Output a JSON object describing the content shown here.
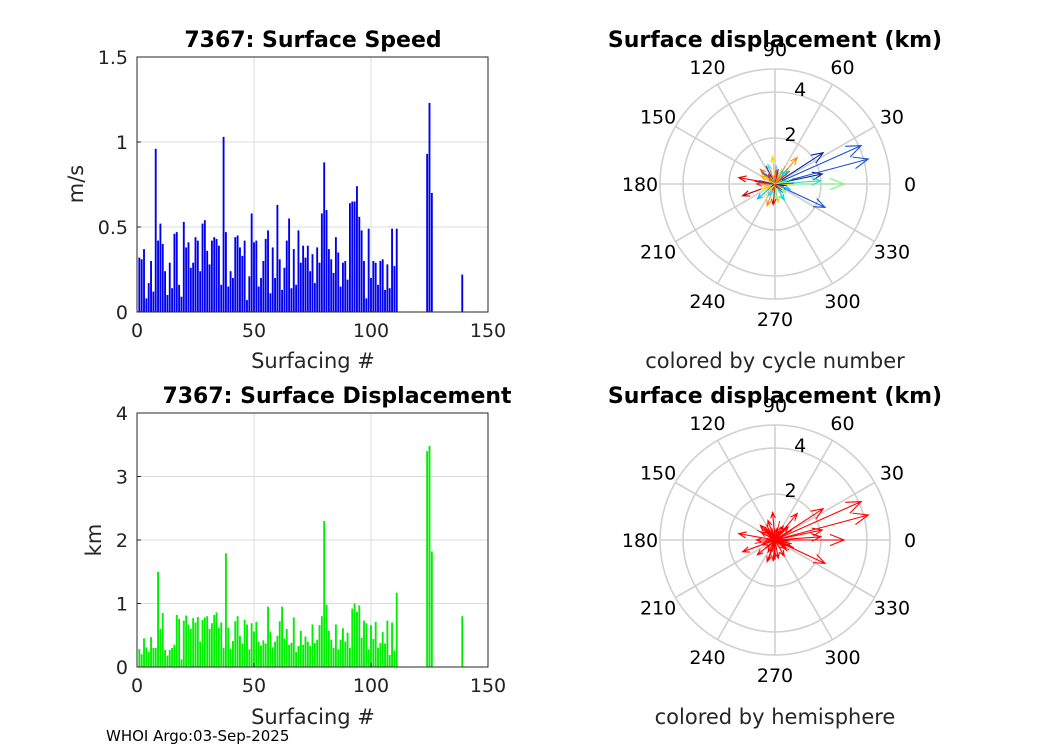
{
  "chart_data": [
    {
      "type": "bar",
      "title": "7367: Surface Speed",
      "xlabel": "Surfacing #",
      "ylabel": "m/s",
      "xlim": [
        0,
        150
      ],
      "ylim": [
        0,
        1.5
      ],
      "xticks": [
        "0",
        "50",
        "100",
        "150"
      ],
      "yticks": [
        "0",
        "0.5",
        "1",
        "1.5"
      ],
      "color": "#0000ee",
      "x": [
        1,
        2,
        3,
        4,
        5,
        6,
        7,
        8,
        9,
        10,
        11,
        12,
        13,
        14,
        15,
        16,
        17,
        18,
        19,
        20,
        21,
        22,
        23,
        24,
        25,
        26,
        27,
        28,
        29,
        30,
        31,
        32,
        33,
        34,
        35,
        36,
        37,
        38,
        39,
        40,
        41,
        42,
        43,
        44,
        45,
        46,
        47,
        48,
        49,
        50,
        51,
        52,
        53,
        54,
        55,
        56,
        57,
        58,
        59,
        60,
        61,
        62,
        63,
        64,
        65,
        66,
        67,
        68,
        69,
        70,
        71,
        72,
        73,
        74,
        75,
        76,
        77,
        78,
        79,
        80,
        81,
        82,
        83,
        84,
        85,
        86,
        87,
        88,
        89,
        90,
        91,
        92,
        93,
        94,
        95,
        96,
        97,
        98,
        99,
        100,
        101,
        102,
        103,
        104,
        105,
        106,
        107,
        108,
        109,
        110,
        111,
        124,
        125,
        126,
        139
      ],
      "values": [
        0.32,
        0.31,
        0.37,
        0.08,
        0.17,
        0.3,
        0.12,
        0.96,
        0.42,
        0.52,
        0.4,
        0.24,
        0.1,
        0.29,
        0.14,
        0.46,
        0.47,
        0.16,
        0.09,
        0.53,
        0.38,
        0.41,
        0.26,
        0.29,
        0.44,
        0.42,
        0.24,
        0.52,
        0.54,
        0.36,
        0.28,
        0.42,
        0.44,
        0.43,
        0.39,
        0.16,
        1.03,
        0.47,
        0.15,
        0.24,
        0.2,
        0.44,
        0.45,
        0.38,
        0.33,
        0.42,
        0.07,
        0.21,
        0.58,
        0.41,
        0.42,
        0.15,
        0.2,
        0.3,
        0.43,
        0.48,
        0.11,
        0.38,
        0.2,
        0.63,
        0.31,
        0.13,
        0.26,
        0.42,
        0.55,
        0.14,
        0.37,
        0.16,
        0.48,
        0.29,
        0.39,
        0.32,
        0.39,
        0.24,
        0.34,
        0.17,
        0.38,
        0.29,
        0.58,
        0.88,
        0.6,
        0.37,
        0.31,
        0.23,
        0.44,
        0.35,
        0.15,
        0.29,
        0.3,
        0.19,
        0.64,
        0.65,
        0.65,
        0.74,
        0.56,
        0.48,
        0.3,
        0.08,
        0.49,
        0.2,
        0.3,
        0.29,
        0.16,
        0.3,
        0.31,
        0.13,
        0.28,
        0.14,
        0.49,
        0.27,
        0.49,
        0.93,
        1.23,
        0.7,
        0.22
      ]
    },
    {
      "type": "bar",
      "title": "7367: Surface Displacement",
      "xlabel": "Surfacing #",
      "ylabel": "km",
      "xlim": [
        0,
        150
      ],
      "ylim": [
        0,
        4
      ],
      "xticks": [
        "0",
        "50",
        "100",
        "150"
      ],
      "yticks": [
        "0",
        "1",
        "2",
        "3",
        "4"
      ],
      "color": "#00ee00",
      "x": [
        1,
        2,
        3,
        4,
        5,
        6,
        7,
        8,
        9,
        10,
        11,
        12,
        13,
        14,
        15,
        16,
        17,
        18,
        19,
        20,
        21,
        22,
        23,
        24,
        25,
        26,
        27,
        28,
        29,
        30,
        31,
        32,
        33,
        34,
        35,
        36,
        37,
        38,
        39,
        40,
        41,
        42,
        43,
        44,
        45,
        46,
        47,
        48,
        49,
        50,
        51,
        52,
        53,
        54,
        55,
        56,
        57,
        58,
        59,
        60,
        61,
        62,
        63,
        64,
        65,
        66,
        67,
        68,
        69,
        70,
        71,
        72,
        73,
        74,
        75,
        76,
        77,
        78,
        79,
        80,
        81,
        82,
        83,
        84,
        85,
        86,
        87,
        88,
        89,
        90,
        91,
        92,
        93,
        94,
        95,
        96,
        97,
        98,
        99,
        100,
        101,
        102,
        103,
        104,
        105,
        106,
        107,
        108,
        109,
        110,
        111,
        124,
        125,
        126,
        139
      ],
      "values": [
        0.28,
        0.2,
        0.45,
        0.31,
        0.24,
        0.47,
        0.3,
        0.3,
        1.5,
        0.6,
        0.85,
        0.27,
        0.18,
        0.27,
        0.3,
        0.35,
        0.82,
        0.76,
        0.12,
        0.73,
        0.81,
        0.67,
        0.6,
        0.77,
        0.7,
        0.79,
        0.4,
        0.74,
        0.78,
        0.8,
        0.6,
        0.69,
        0.82,
        0.86,
        0.62,
        0.7,
        0.3,
        1.79,
        0.62,
        0.29,
        0.41,
        0.72,
        0.8,
        0.49,
        0.37,
        0.74,
        0.67,
        0.28,
        0.69,
        0.56,
        0.71,
        0.4,
        0.34,
        0.42,
        0.37,
        0.95,
        0.55,
        0.31,
        0.4,
        0.49,
        0.72,
        0.95,
        0.45,
        0.6,
        0.35,
        0.38,
        0.78,
        0.24,
        0.33,
        0.57,
        0.35,
        0.48,
        0.4,
        0.33,
        0.67,
        0.38,
        0.43,
        0.66,
        0.8,
        2.3,
        0.98,
        0.57,
        0.43,
        0.3,
        0.67,
        0.28,
        0.43,
        0.61,
        0.4,
        0.54,
        0.3,
        0.92,
        1.0,
        0.87,
        0.97,
        0.46,
        0.73,
        0.69,
        0.28,
        0.66,
        0.44,
        0.71,
        0.3,
        0.38,
        0.55,
        0.37,
        0.73,
        0.19,
        0.7,
        0.26,
        1.17,
        3.4,
        3.48,
        1.82,
        0.8
      ]
    },
    {
      "type": "polar",
      "title": "Surface displacement (km)",
      "caption": "colored by cycle number",
      "rmax": 5,
      "rticks": [
        "2",
        "4"
      ],
      "angle_ticks": [
        "0",
        "30",
        "60",
        "90",
        "120",
        "150",
        "180",
        "210",
        "240",
        "270",
        "300",
        "330"
      ],
      "arrows": [
        {
          "length_km": 4.1,
          "angle_deg": 24,
          "color": "#1a4fd6"
        },
        {
          "length_km": 4.2,
          "angle_deg": 15,
          "color": "#1a4fd6"
        },
        {
          "length_km": 2.5,
          "angle_deg": 33,
          "color": "#0a2a9a"
        },
        {
          "length_km": 2.1,
          "angle_deg": 12,
          "color": "#0a2a9a"
        },
        {
          "length_km": 2.4,
          "angle_deg": -25,
          "color": "#1a4fd6"
        },
        {
          "length_km": 3.0,
          "angle_deg": 0,
          "color": "#7cf07c"
        },
        {
          "length_km": 2.0,
          "angle_deg": 4,
          "color": "#2ee0c0"
        },
        {
          "length_km": 1.5,
          "angle_deg": 50,
          "color": "#ff8c00"
        },
        {
          "length_km": 1.2,
          "angle_deg": 95,
          "color": "#ffd400"
        },
        {
          "length_km": 1.5,
          "angle_deg": 200,
          "color": "#c00000"
        },
        {
          "length_km": 1.6,
          "angle_deg": 170,
          "color": "#e00000"
        },
        {
          "length_km": 0.9,
          "angle_deg": 135,
          "color": "#ff6a00"
        },
        {
          "length_km": 1.0,
          "angle_deg": 250,
          "color": "#ff8c00"
        },
        {
          "length_km": 0.8,
          "angle_deg": 280,
          "color": "#ffcf00"
        },
        {
          "length_km": 1.0,
          "angle_deg": 220,
          "color": "#00c0e0"
        },
        {
          "length_km": 0.8,
          "angle_deg": 300,
          "color": "#00e0d0"
        },
        {
          "length_km": 0.9,
          "angle_deg": 110,
          "color": "#40e0ff"
        },
        {
          "length_km": 0.7,
          "angle_deg": 60,
          "color": "#3fb0ff"
        },
        {
          "length_km": 0.8,
          "angle_deg": 180,
          "color": "#ff3000"
        },
        {
          "length_km": 0.6,
          "angle_deg": 320,
          "color": "#9cff60"
        },
        {
          "length_km": 0.7,
          "angle_deg": 150,
          "color": "#ffb000"
        },
        {
          "length_km": 0.6,
          "angle_deg": 240,
          "color": "#30d0ff"
        },
        {
          "length_km": 0.9,
          "angle_deg": 265,
          "color": "#e00000"
        },
        {
          "length_km": 0.5,
          "angle_deg": 80,
          "color": "#ff5000"
        },
        {
          "length_km": 0.7,
          "angle_deg": 340,
          "color": "#00c8ff"
        },
        {
          "length_km": 0.6,
          "angle_deg": 200,
          "color": "#ffe000"
        },
        {
          "length_km": 0.8,
          "angle_deg": 45,
          "color": "#00e0e0"
        },
        {
          "length_km": 0.5,
          "angle_deg": 125,
          "color": "#ff2000"
        }
      ]
    },
    {
      "type": "polar",
      "title": "Surface displacement (km)",
      "caption": "colored by hemisphere",
      "rmax": 5,
      "rticks": [
        "2",
        "4"
      ],
      "angle_ticks": [
        "0",
        "30",
        "60",
        "90",
        "120",
        "150",
        "180",
        "210",
        "240",
        "270",
        "300",
        "330"
      ],
      "arrows": [
        {
          "length_km": 4.1,
          "angle_deg": 24,
          "color": "#ff0000"
        },
        {
          "length_km": 4.2,
          "angle_deg": 15,
          "color": "#ff0000"
        },
        {
          "length_km": 2.5,
          "angle_deg": 33,
          "color": "#ff0000"
        },
        {
          "length_km": 2.1,
          "angle_deg": 12,
          "color": "#ff0000"
        },
        {
          "length_km": 2.4,
          "angle_deg": -25,
          "color": "#ff0000"
        },
        {
          "length_km": 3.0,
          "angle_deg": 0,
          "color": "#ff0000"
        },
        {
          "length_km": 2.0,
          "angle_deg": 4,
          "color": "#ff0000"
        },
        {
          "length_km": 1.5,
          "angle_deg": 50,
          "color": "#ff0000"
        },
        {
          "length_km": 1.2,
          "angle_deg": 95,
          "color": "#ff0000"
        },
        {
          "length_km": 1.5,
          "angle_deg": 200,
          "color": "#ff0000"
        },
        {
          "length_km": 1.6,
          "angle_deg": 170,
          "color": "#ff0000"
        },
        {
          "length_km": 0.9,
          "angle_deg": 135,
          "color": "#ff0000"
        },
        {
          "length_km": 1.0,
          "angle_deg": 250,
          "color": "#ff0000"
        },
        {
          "length_km": 0.8,
          "angle_deg": 280,
          "color": "#ff0000"
        },
        {
          "length_km": 1.0,
          "angle_deg": 220,
          "color": "#ff0000"
        },
        {
          "length_km": 0.8,
          "angle_deg": 300,
          "color": "#ff0000"
        },
        {
          "length_km": 0.9,
          "angle_deg": 110,
          "color": "#ff0000"
        },
        {
          "length_km": 0.7,
          "angle_deg": 60,
          "color": "#ff0000"
        },
        {
          "length_km": 0.8,
          "angle_deg": 180,
          "color": "#ff0000"
        },
        {
          "length_km": 0.6,
          "angle_deg": 320,
          "color": "#ff0000"
        },
        {
          "length_km": 0.7,
          "angle_deg": 150,
          "color": "#ff0000"
        },
        {
          "length_km": 0.6,
          "angle_deg": 240,
          "color": "#ff0000"
        },
        {
          "length_km": 0.9,
          "angle_deg": 265,
          "color": "#ff0000"
        },
        {
          "length_km": 0.5,
          "angle_deg": 80,
          "color": "#ff0000"
        },
        {
          "length_km": 0.7,
          "angle_deg": 340,
          "color": "#ff0000"
        },
        {
          "length_km": 0.6,
          "angle_deg": 200,
          "color": "#ff0000"
        },
        {
          "length_km": 0.8,
          "angle_deg": 45,
          "color": "#ff0000"
        },
        {
          "length_km": 0.5,
          "angle_deg": 125,
          "color": "#ff0000"
        }
      ]
    }
  ],
  "footer": {
    "credit": "WHOI Argo:03-Sep-2025"
  }
}
